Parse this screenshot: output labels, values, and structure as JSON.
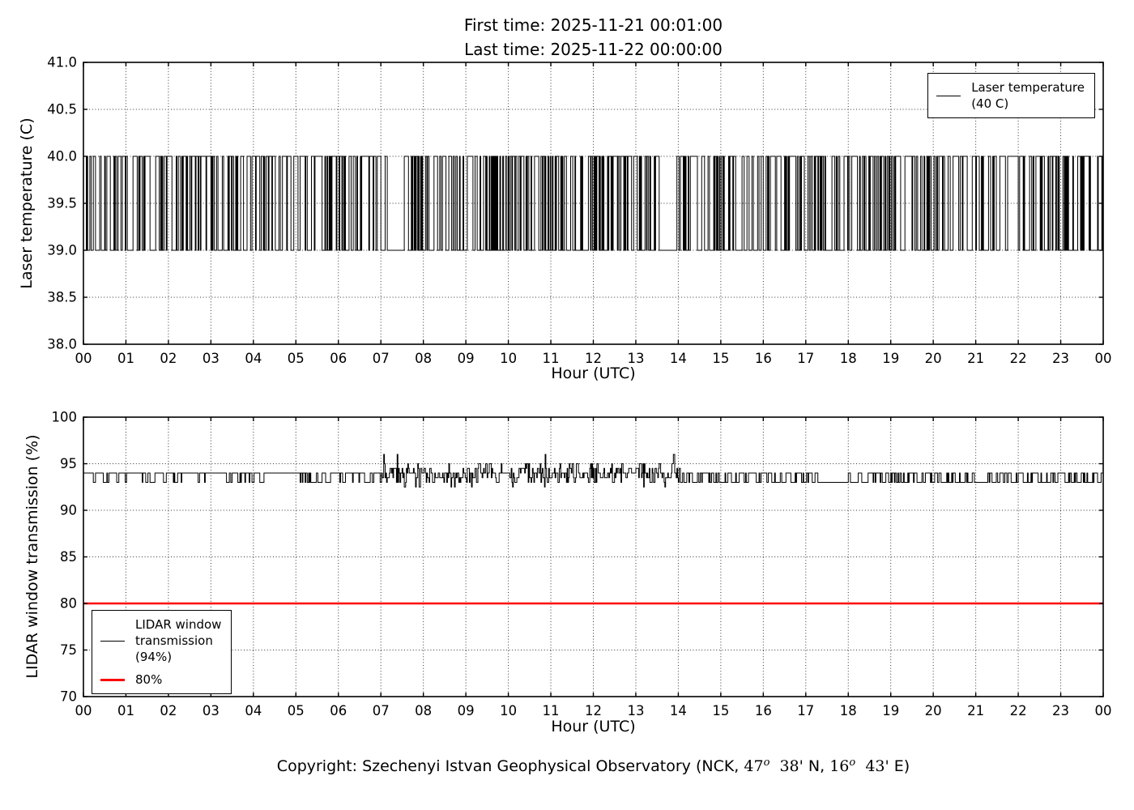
{
  "title": {
    "line1": "First time: 2025-11-21 00:01:00",
    "line2": "Last time: 2025-11-22 00:00:00"
  },
  "colors": {
    "data_line": "#000000",
    "threshold_line": "#ff0000",
    "background": "#ffffff"
  },
  "chart_data": [
    {
      "type": "line",
      "title": "",
      "xlabel": "Hour (UTC)",
      "ylabel": "Laser temperature (C)",
      "xlim": [
        0,
        24
      ],
      "ylim": [
        38.0,
        41.0
      ],
      "grid": "dotted",
      "xtick_labels": [
        "00",
        "01",
        "02",
        "03",
        "04",
        "05",
        "06",
        "07",
        "08",
        "09",
        "10",
        "11",
        "12",
        "13",
        "14",
        "15",
        "16",
        "17",
        "18",
        "19",
        "20",
        "21",
        "22",
        "23",
        "00"
      ],
      "yticks": [
        38.0,
        38.5,
        39.0,
        39.5,
        40.0,
        40.5,
        41.0
      ],
      "ytick_labels": [
        "38.0",
        "38.5",
        "39.0",
        "39.5",
        "40.0",
        "40.5",
        "41.0"
      ],
      "legend": {
        "position": "upper right",
        "entries": [
          {
            "label": "Laser temperature (40 C)",
            "lines": [
              "Laser temperature",
              "(40 C)"
            ],
            "color": "#000000"
          }
        ]
      },
      "series": [
        {
          "name": "Laser temperature (40 C)",
          "slug": "laser-temperature-line",
          "color": "#000000",
          "width": 1.0,
          "summary": "Thermostat-style square wave alternating between 39.0 C and 40.0 C for the whole day (00:01 to 24:00); brief settled spells at 39.0 C around 07:10-07:30 and 13:35-13:50.",
          "pattern": {
            "kind": "random-square",
            "minutes": 1440,
            "seed": 1234,
            "levels": [
              39.0,
              40.0
            ],
            "switch_prob": 0.38,
            "quiet_periods": [
              {
                "start_hour": 7.17,
                "end_hour": 7.5,
                "level": 39.0
              },
              {
                "start_hour": 13.58,
                "end_hour": 13.85,
                "level": 39.0
              }
            ]
          }
        }
      ]
    },
    {
      "type": "line",
      "title": "",
      "xlabel": "Hour (UTC)",
      "ylabel": "LIDAR window transmission (%)",
      "xlim": [
        0,
        24
      ],
      "ylim": [
        70,
        100
      ],
      "grid": "dotted",
      "xtick_labels": [
        "00",
        "01",
        "02",
        "03",
        "04",
        "05",
        "06",
        "07",
        "08",
        "09",
        "10",
        "11",
        "12",
        "13",
        "14",
        "15",
        "16",
        "17",
        "18",
        "19",
        "20",
        "21",
        "22",
        "23",
        "00"
      ],
      "yticks": [
        70,
        75,
        80,
        85,
        90,
        95,
        100
      ],
      "ytick_labels": [
        "70",
        "75",
        "80",
        "85",
        "90",
        "95",
        "100"
      ],
      "legend": {
        "position": "lower left",
        "entries": [
          {
            "label": "LIDAR window transmission (94%)",
            "lines": [
              "LIDAR window",
              "transmission",
              "(94%)"
            ],
            "color": "#000000"
          },
          {
            "label": "80%",
            "lines": [
              "80%"
            ],
            "color": "#ff0000"
          }
        ]
      },
      "series": [
        {
          "name": "LIDAR window transmission (94%)",
          "slug": "transmission-line",
          "color": "#000000",
          "width": 1.0,
          "summary": "Transmission stays between 93% and 94% nearly all day: 94% base with short dips to 93% before 07:00; noisier 92.5-95% jitter with a few spikes to ~96% between 07:00 and 14:00; 93% base with 94% pulses after 14:00 (flat 93% stretch near 17:20-17:55).",
          "pattern": {
            "kind": "random-step",
            "minutes": 1440,
            "seed": 99,
            "phases": [
              {
                "start_hour": 0,
                "end_hour": 7.0,
                "levels": [
                  94,
                  93
                ],
                "weights": [
                  0.76,
                  0.24
                ],
                "hold": 0.5
              },
              {
                "start_hour": 7.0,
                "end_hour": 14.05,
                "levels": [
                  92.5,
                  93,
                  93.5,
                  94,
                  94.5,
                  95,
                  96
                ],
                "weights": [
                  0.05,
                  0.16,
                  0.22,
                  0.33,
                  0.15,
                  0.08,
                  0.01
                ],
                "hold": 0.25
              },
              {
                "start_hour": 14.05,
                "end_hour": 17.35,
                "levels": [
                  93,
                  94
                ],
                "weights": [
                  0.58,
                  0.42
                ],
                "hold": 0.45
              },
              {
                "start_hour": 17.35,
                "end_hour": 17.95,
                "levels": [
                  93
                ],
                "weights": [
                  1
                ],
                "hold": 0
              },
              {
                "start_hour": 17.95,
                "end_hour": 24,
                "levels": [
                  93,
                  94
                ],
                "weights": [
                  0.52,
                  0.48
                ],
                "hold": 0.35
              }
            ]
          }
        },
        {
          "name": "80%",
          "slug": "threshold-80-line",
          "color": "#ff0000",
          "width": 2.6,
          "constant": 80,
          "summary": "Constant red reference line at 80% transmission."
        }
      ]
    }
  ],
  "footer": {
    "p1": "Copyright: Szechenyi Istvan Geophysical Observatory (NCK, ",
    "lat_deg": "47",
    "lat_sup": "o",
    "lat_min": "  38'",
    "lat_hemi": " N, ",
    "lon_deg": "16",
    "lon_sup": "o",
    "lon_min": "  43'",
    "lon_hemi": " E)"
  }
}
